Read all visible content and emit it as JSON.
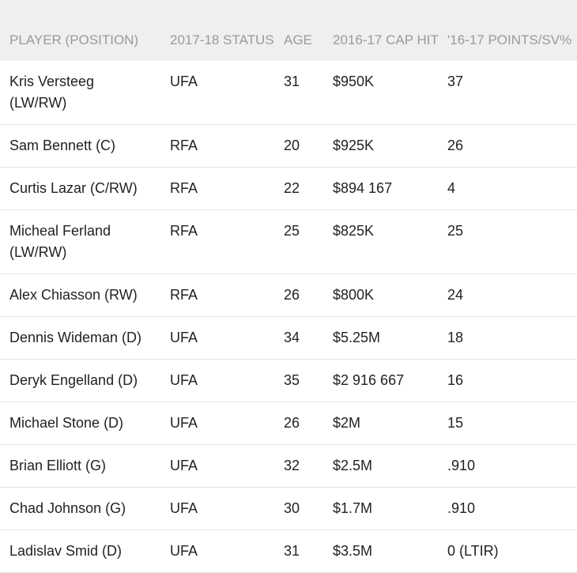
{
  "table": {
    "headers": [
      "PLAYER (POSITION)",
      "2017-18 STATUS",
      "AGE",
      "2016-17 CAP HIT",
      "'16-17 POINTS/SV%"
    ],
    "rows": [
      [
        "Kris Versteeg (LW/RW)",
        "UFA",
        "31",
        "$950K",
        "37"
      ],
      [
        "Sam Bennett (C)",
        "RFA",
        "20",
        "$925K",
        "26"
      ],
      [
        "Curtis Lazar (C/RW)",
        "RFA",
        "22",
        "$894 167",
        "4"
      ],
      [
        "Micheal Ferland (LW/RW)",
        "RFA",
        "25",
        "$825K",
        "25"
      ],
      [
        "Alex Chiasson (RW)",
        "RFA",
        "26",
        "$800K",
        "24"
      ],
      [
        "Dennis Wideman (D)",
        "UFA",
        "34",
        "$5.25M",
        "18"
      ],
      [
        "Deryk Engelland (D)",
        "UFA",
        "35",
        "$2 916 667",
        "16"
      ],
      [
        "Michael Stone (D)",
        "UFA",
        "26",
        "$2M",
        "15"
      ],
      [
        "Brian Elliott (G)",
        "UFA",
        "32",
        "$2.5M",
        ".910"
      ],
      [
        "Chad Johnson (G)",
        "UFA",
        "30",
        "$1.7M",
        ".910"
      ],
      [
        "Ladislav Smid (D)",
        "UFA",
        "31",
        "$3.5M",
        "0 (LTIR)"
      ]
    ]
  }
}
